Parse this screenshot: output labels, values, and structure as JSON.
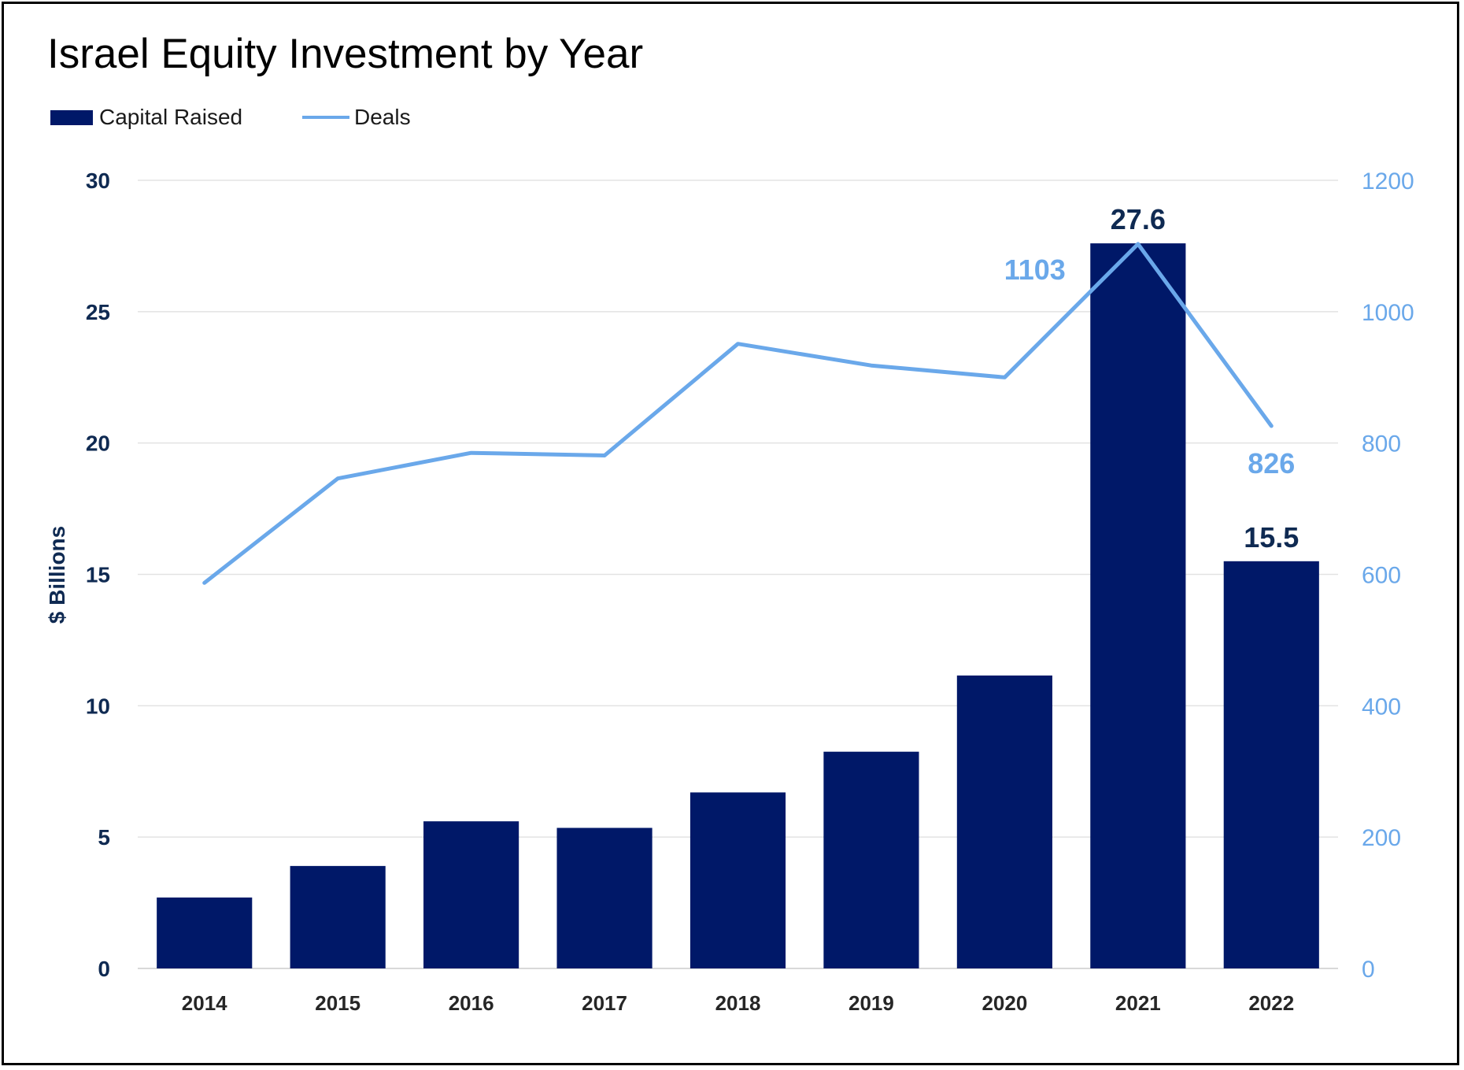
{
  "colors": {
    "bar": "#001868",
    "line": "#6aa8ea",
    "left_axis_text": "#0f2a52",
    "right_axis_text": "#6aa8ea",
    "x_axis_text": "#262626",
    "grid": "#e3e3e3",
    "bar_label": "#0f2a52",
    "line_label": "#6aa8ea"
  },
  "chart_data": {
    "type": "bar",
    "title": "Israel Equity Investment by Year",
    "xlabel": "",
    "ylabel": "$ Billions",
    "categories": [
      "2014",
      "2015",
      "2016",
      "2017",
      "2018",
      "2019",
      "2020",
      "2021",
      "2022"
    ],
    "series": [
      {
        "name": "Capital Raised",
        "type": "bar",
        "axis": "left",
        "values": [
          2.7,
          3.9,
          5.6,
          5.35,
          6.7,
          8.25,
          11.15,
          27.6,
          15.5
        ]
      },
      {
        "name": "Deals",
        "type": "line",
        "axis": "right",
        "values": [
          587,
          746,
          785,
          781,
          951,
          918,
          900,
          1103,
          826
        ]
      }
    ],
    "ylim": [
      0,
      30
    ],
    "yticks": [
      "0",
      "5",
      "10",
      "15",
      "20",
      "25",
      "30"
    ],
    "y2lim": [
      0,
      1200
    ],
    "y2ticks": [
      "0",
      "200",
      "400",
      "600",
      "800",
      "1000",
      "1200"
    ],
    "data_labels": {
      "bars": [
        {
          "category": "2021",
          "text": "27.6"
        },
        {
          "category": "2022",
          "text": "15.5"
        }
      ],
      "line": [
        {
          "category": "2021",
          "text": "1103"
        },
        {
          "category": "2022",
          "text": "826"
        }
      ]
    },
    "grid": true,
    "legend": "top-left"
  }
}
